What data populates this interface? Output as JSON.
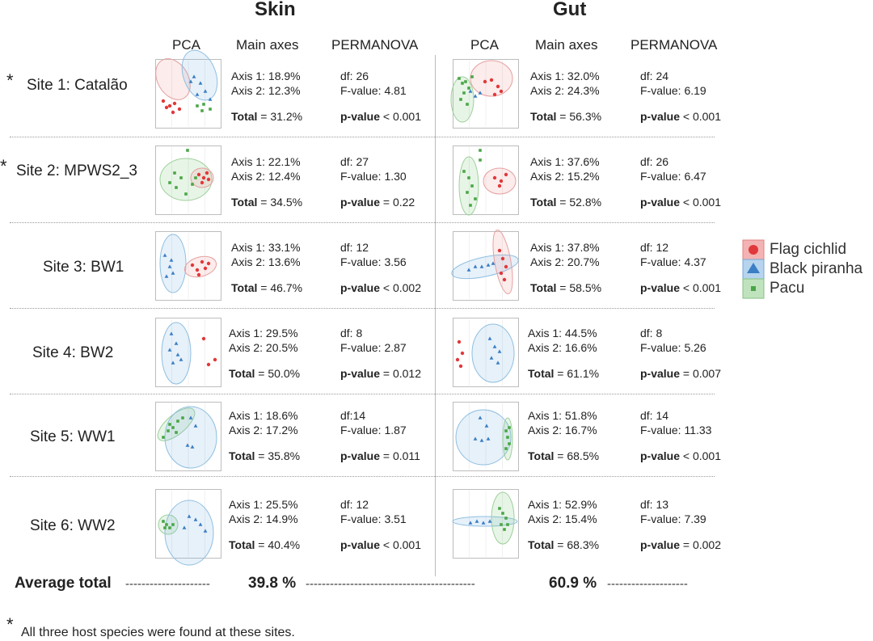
{
  "chart_data": {
    "type": "table",
    "panel_titles": {
      "skin": "Skin",
      "gut": "Gut"
    },
    "column_headers": {
      "pca": "PCA",
      "axes": "Main axes",
      "permanova": "PERMANOVA"
    },
    "legend": [
      {
        "label": "Flag cichlid",
        "color": "#e0393b",
        "marker": "circle"
      },
      {
        "label": "Black piranha",
        "color": "#3a7ec4",
        "marker": "triangle"
      },
      {
        "label": "Pacu",
        "color": "#4aa647",
        "marker": "square"
      }
    ],
    "sites": [
      {
        "label": "Site 1: Catalão",
        "asterisk": "*",
        "skin": {
          "axis1": "Axis 1: 18.9%",
          "axis2": "Axis 2: 12.3%",
          "total": "= 31.2%",
          "df": "df: 26",
          "f": "F-value: 4.81",
          "p": "< 0.001"
        },
        "gut": {
          "axis1": "Axis 1: 32.0%",
          "axis2": "Axis 2: 24.3%",
          "total": "= 56.3%",
          "df": "df: 24",
          "f": "F-value: 6.19",
          "p": "< 0.001"
        }
      },
      {
        "label": "Site 2: MPWS2_3",
        "asterisk": "*",
        "skin": {
          "axis1": "Axis 1: 22.1%",
          "axis2": "Axis 2: 12.4%",
          "total": "= 34.5%",
          "df": "df: 27",
          "f": "F-value: 1.30",
          "p": "= 0.22"
        },
        "gut": {
          "axis1": "Axis 1: 37.6%",
          "axis2": "Axis 2: 15.2%",
          "total": "= 52.8%",
          "df": "df: 26",
          "f": "F-value: 6.47",
          "p": "< 0.001"
        }
      },
      {
        "label": "Site 3: BW1",
        "asterisk": "",
        "skin": {
          "axis1": "Axis 1: 33.1%",
          "axis2": "Axis 2: 13.6%",
          "total": "= 46.7%",
          "df": "df: 12",
          "f": "F-value:  3.56",
          "p": "< 0.002"
        },
        "gut": {
          "axis1": "Axis 1: 37.8%",
          "axis2": "Axis 2: 20.7%",
          "total": "= 58.5%",
          "df": "df: 12",
          "f": "F-value: 4.37",
          "p": "< 0.001"
        }
      },
      {
        "label": "Site 4: BW2",
        "asterisk": "",
        "skin": {
          "axis1": "Axis 1: 29.5%",
          "axis2": "Axis 2: 20.5%",
          "total": "= 50.0%",
          "df": "df: 8",
          "f": "F-value: 2.87",
          "p": "= 0.012"
        },
        "gut": {
          "axis1": "Axis 1: 44.5%",
          "axis2": "Axis 2: 16.6%",
          "total": "= 61.1%",
          "df": "df: 8",
          "f": "F-value: 5.26",
          "p": "= 0.007"
        }
      },
      {
        "label": "Site 5: WW1",
        "asterisk": "",
        "skin": {
          "axis1": "Axis 1: 18.6%",
          "axis2": "Axis 2: 17.2%",
          "total": "= 35.8%",
          "df": "df:14",
          "f": "F-value: 1.87",
          "p": "= 0.011"
        },
        "gut": {
          "axis1": "Axis 1: 51.8%",
          "axis2": "Axis 2: 16.7%",
          "total": "= 68.5%",
          "df": "df: 14",
          "f": "F-value: 11.33",
          "p": "< 0.001"
        }
      },
      {
        "label": "Site 6: WW2",
        "asterisk": "",
        "skin": {
          "axis1": "Axis 1: 25.5%",
          "axis2": "Axis 2: 14.9%",
          "total": "= 40.4%",
          "df": "df: 12",
          "f": "F-value: 3.51",
          "p": "< 0.001"
        },
        "gut": {
          "axis1": "Axis 1: 52.9%",
          "axis2": "Axis 2: 15.4%",
          "total": "= 68.3%",
          "df": "df: 13",
          "f": "F-value: 7.39",
          "p": "= 0.002"
        }
      }
    ],
    "labels": {
      "total": "Total",
      "p_value": "p-value"
    },
    "average": {
      "label": "Average total",
      "skin": "39.8 %",
      "gut": "60.9 %"
    },
    "footnote": {
      "asterisk": "*",
      "text": "All three host species were found at these sites."
    }
  }
}
